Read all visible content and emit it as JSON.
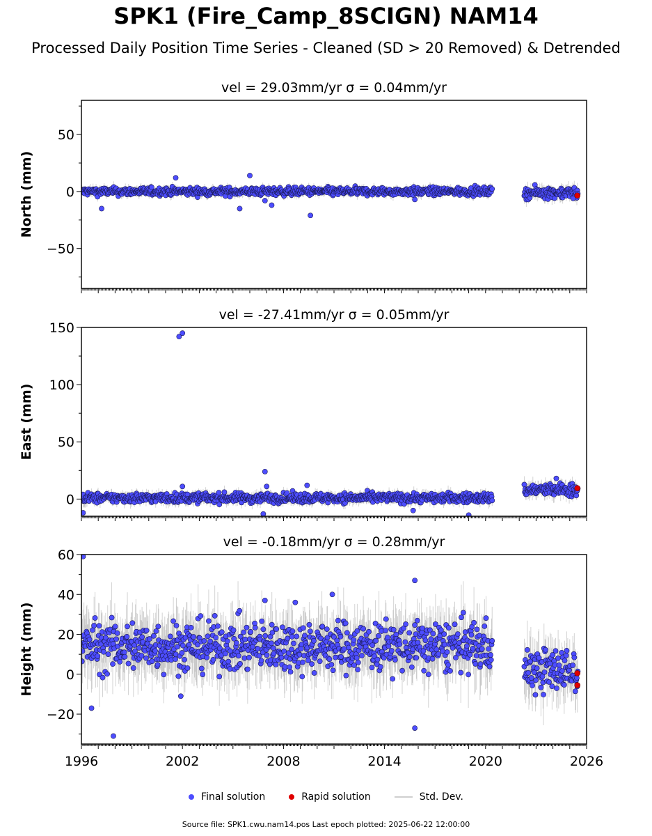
{
  "title": "SPK1 (Fire_Camp_8SCIGN) NAM14",
  "subtitle": "Processed Daily Position Time Series - Cleaned (SD > 20 Removed) & Detrended",
  "legend": {
    "final": "Final solution",
    "rapid": "Rapid solution",
    "std": "Std. Dev."
  },
  "footer": "Source file: SPK1.cwu.nam14.pos  Last epoch plotted: 2025-06-22 12:00:00",
  "colors": {
    "final": "#4d4dff",
    "rapid": "#e00000",
    "std": "#9e9e9e"
  },
  "chart_data": [
    {
      "type": "scatter",
      "title": "vel = 29.03mm/yr   σ = 0.04mm/yr",
      "ylabel": "North (mm)",
      "xlim": [
        1996,
        2026
      ],
      "ylim": [
        -85,
        80
      ],
      "yticks": [
        -50,
        0,
        50
      ],
      "xticks": [
        1996,
        2002,
        2008,
        2014,
        2020,
        2026
      ],
      "gaps": [
        [
          2020.4,
          2022.3
        ]
      ],
      "band": {
        "segments": [
          [
            1996,
            2020.4,
            0,
            2.5
          ],
          [
            2022.3,
            2025.5,
            -1,
            3.5
          ]
        ]
      },
      "outliers": [
        [
          1997.2,
          -15
        ],
        [
          2001.6,
          12
        ],
        [
          2005.4,
          -15
        ],
        [
          2006.0,
          14
        ],
        [
          2006.9,
          -8
        ],
        [
          2007.3,
          -12
        ],
        [
          2009.6,
          -21
        ],
        [
          2015.8,
          -7
        ],
        [
          2025.2,
          -6
        ]
      ],
      "rapid": [
        [
          2025.45,
          -3.5
        ]
      ]
    },
    {
      "type": "scatter",
      "title": "vel = -27.41mm/yr   σ = 0.05mm/yr",
      "ylabel": "East (mm)",
      "xlim": [
        1996,
        2026
      ],
      "ylim": [
        -15,
        150
      ],
      "yticks": [
        0,
        50,
        100,
        150
      ],
      "xticks": [
        1996,
        2002,
        2008,
        2014,
        2020,
        2026
      ],
      "gaps": [
        [
          2020.4,
          2022.3
        ]
      ],
      "band": {
        "segments": [
          [
            1996,
            2020.4,
            1,
            3
          ],
          [
            2022.3,
            2025.5,
            8,
            4
          ]
        ]
      },
      "outliers": [
        [
          2001.8,
          142
        ],
        [
          2002.0,
          145
        ],
        [
          2006.9,
          24
        ],
        [
          2006.8,
          -13
        ],
        [
          1996.1,
          -12
        ],
        [
          2002.0,
          11
        ],
        [
          2007.0,
          11
        ],
        [
          2009.4,
          12
        ],
        [
          2015.7,
          -10
        ],
        [
          2019.0,
          -14
        ],
        [
          2024.2,
          18
        ]
      ],
      "rapid": [
        [
          2025.45,
          9.5
        ]
      ]
    },
    {
      "type": "scatter",
      "title": "vel = -0.18mm/yr   σ = 0.28mm/yr",
      "ylabel": "Height (mm)",
      "xlim": [
        1996,
        2026
      ],
      "ylim": [
        -35,
        60
      ],
      "yticks": [
        -20,
        0,
        20,
        40,
        60
      ],
      "xticks": [
        1996,
        2002,
        2008,
        2014,
        2020,
        2026
      ],
      "gaps": [
        [
          2020.4,
          2022.3
        ]
      ],
      "band": {
        "segments": [
          [
            1996,
            2020.4,
            14,
            9
          ],
          [
            2022.3,
            2025.5,
            2,
            8
          ]
        ]
      },
      "outliers": [
        [
          1996.1,
          59
        ],
        [
          1997.9,
          -31
        ],
        [
          2015.8,
          -27
        ],
        [
          2015.8,
          47
        ],
        [
          2010.9,
          40
        ],
        [
          2008.7,
          36
        ],
        [
          2006.9,
          37
        ],
        [
          1996.6,
          -17
        ],
        [
          2001.9,
          -11
        ]
      ],
      "rapid": [
        [
          2025.45,
          0.5
        ],
        [
          2025.45,
          -5.5
        ]
      ]
    }
  ]
}
